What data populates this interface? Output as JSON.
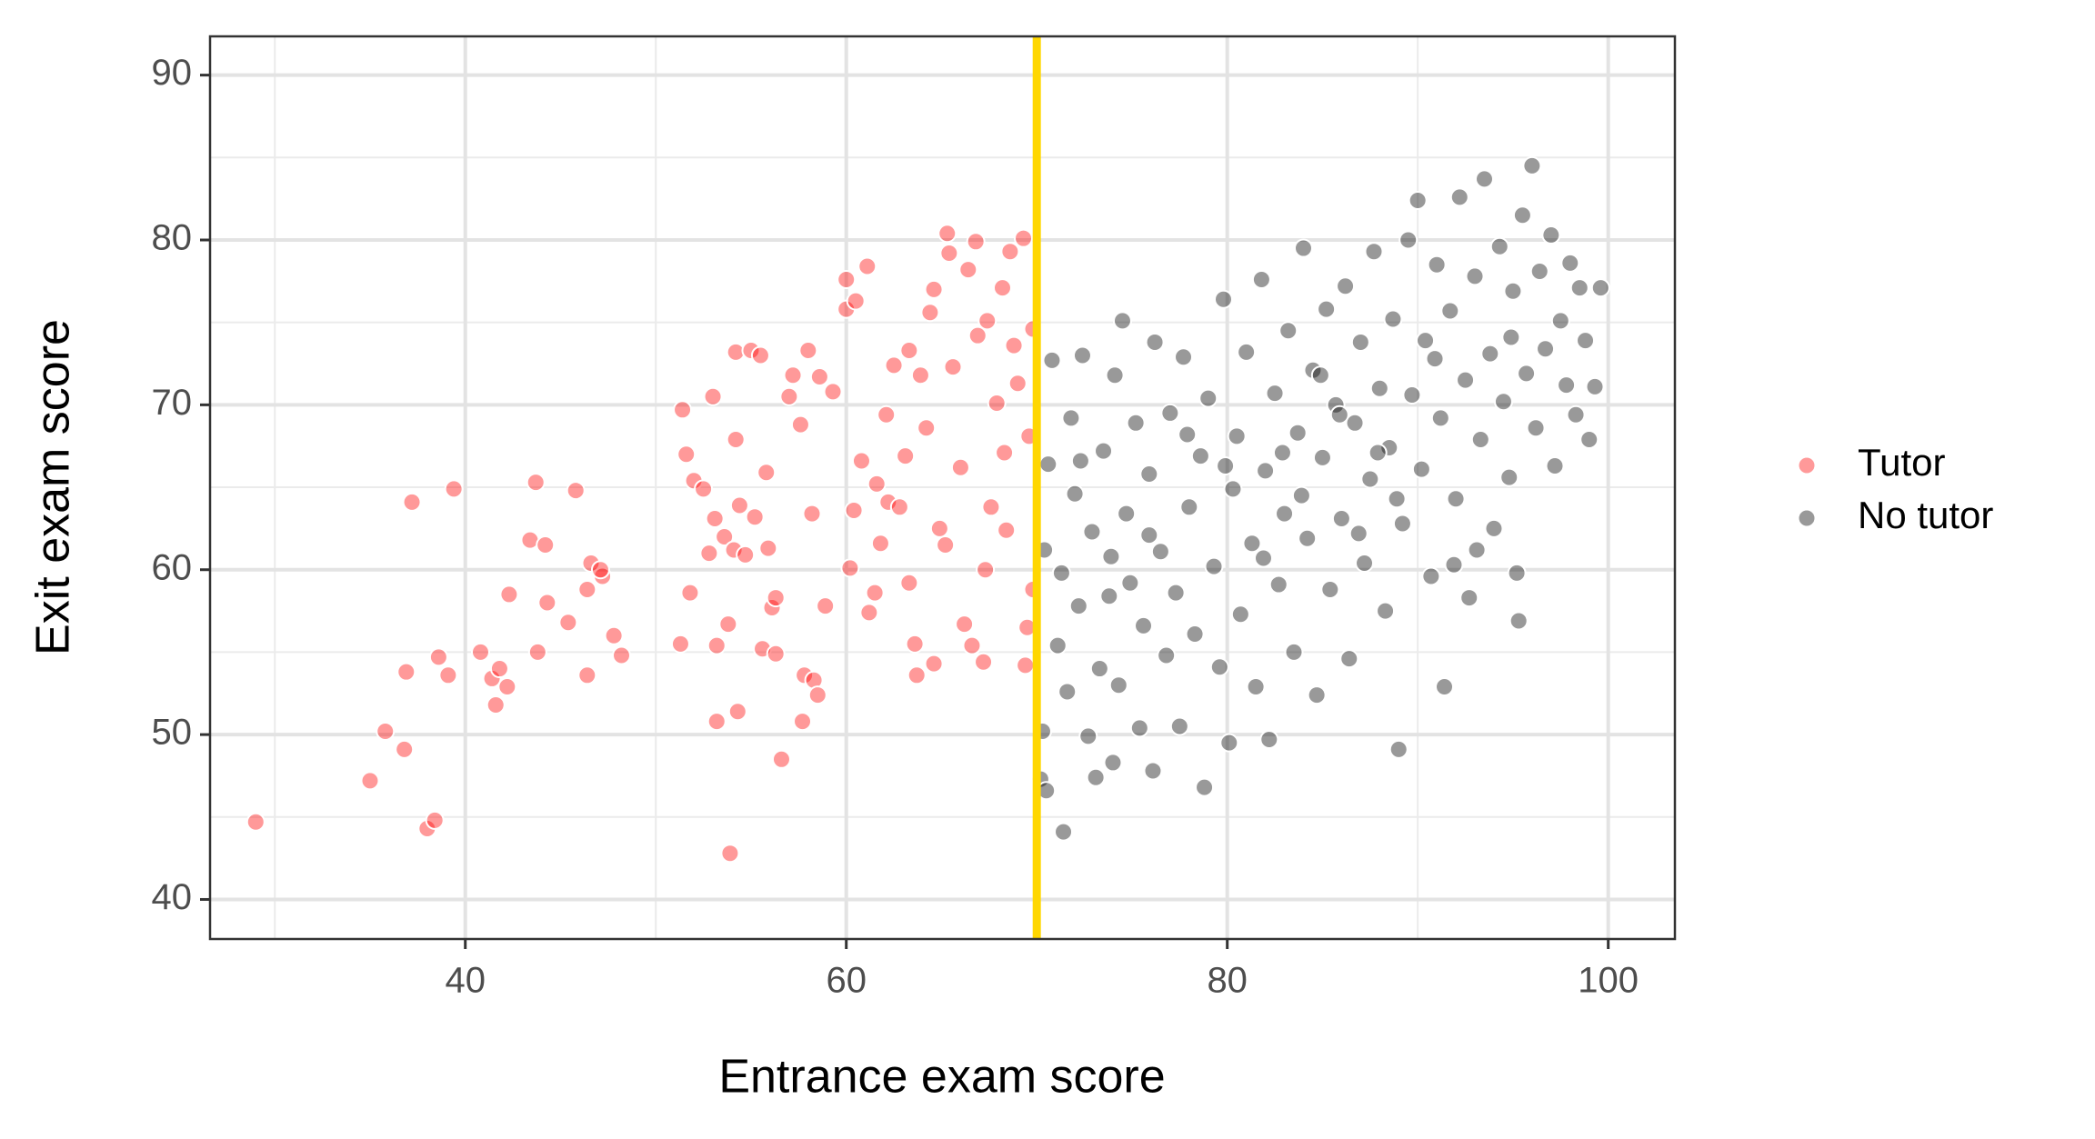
{
  "chart_data": {
    "type": "scatter",
    "x_label": "Entrance exam score",
    "y_label": "Exit exam score",
    "xlim": [
      26.6,
      103.5
    ],
    "ylim": [
      37.6,
      92.35
    ],
    "xticks": [
      40,
      60,
      80,
      100
    ],
    "yticks": [
      40,
      50,
      60,
      70,
      80,
      90
    ],
    "x_minor_ticks": [
      30,
      50,
      70,
      90
    ],
    "y_minor_ticks": [
      45,
      55,
      65,
      75,
      85
    ],
    "grid": true,
    "legend": "right",
    "alpha": 0.4,
    "cutoff": {
      "x": 70,
      "color": "#ffd700"
    },
    "series": [
      {
        "name": "Tutor",
        "color": "#ff0000",
        "x": [
          29,
          35,
          35.8,
          37.2,
          36.9,
          36.8,
          38,
          38.4,
          38.6,
          39.1,
          39.4,
          40.8,
          41.4,
          41.6,
          41.8,
          42.2,
          42.3,
          43.4,
          43.7,
          43.8,
          44.2,
          44.3,
          45.4,
          45.8,
          46.4,
          46.4,
          46.6,
          47.2,
          47.1,
          47.8,
          48.2,
          51.3,
          51.4,
          51.6,
          51.8,
          52,
          52.5,
          52.8,
          53,
          53.1,
          53.2,
          53.2,
          53.6,
          53.8,
          53.9,
          54.1,
          54.2,
          54.2,
          54.3,
          54.4,
          54.7,
          55,
          55.2,
          55.5,
          55.6,
          55.8,
          55.9,
          56.1,
          56.3,
          56.3,
          56.6,
          57,
          57.2,
          57.6,
          57.7,
          57.8,
          58,
          58.2,
          58.3,
          58.5,
          58.6,
          58.9,
          59.3,
          60,
          60,
          60.2,
          60.4,
          60.5,
          60.8,
          61.1,
          61.2,
          61.5,
          61.6,
          61.8,
          62.1,
          62.2,
          62.5,
          62.8,
          63.1,
          63.3,
          63.3,
          63.6,
          63.7,
          63.9,
          64.2,
          64.4,
          64.6,
          64.6,
          64.9,
          65.2,
          65.3,
          65.4,
          65.6,
          66,
          66.2,
          66.4,
          66.6,
          66.8,
          66.9,
          67.2,
          67.3,
          67.4,
          67.6,
          67.9,
          68.2,
          68.3,
          68.6,
          68.8,
          69,
          69.3,
          69.5,
          69.6,
          69.8,
          69.8,
          68.4,
          69.4
        ],
        "values": [
          44.7,
          47.2,
          50.2,
          64.1,
          53.8,
          49.1,
          44.3,
          44.8,
          54.7,
          53.6,
          64.9,
          55,
          53.4,
          51.8,
          54,
          52.9,
          58.5,
          61.8,
          65.3,
          55,
          61.5,
          58,
          56.8,
          64.8,
          53.6,
          58.8,
          60.4,
          59.6,
          60,
          56,
          54.8,
          55.5,
          69.7,
          67,
          58.6,
          65.4,
          64.9,
          61,
          70.5,
          63.1,
          55.4,
          50.8,
          62,
          56.7,
          42.8,
          61.2,
          73.2,
          67.9,
          51.4,
          63.9,
          60.9,
          73.3,
          63.2,
          73,
          55.2,
          65.9,
          61.3,
          57.7,
          54.9,
          58.3,
          48.5,
          70.5,
          71.8,
          68.8,
          50.8,
          53.6,
          73.3,
          63.4,
          53.3,
          52.4,
          71.7,
          57.8,
          70.8,
          75.8,
          77.6,
          60.1,
          63.6,
          76.3,
          66.6,
          78.4,
          57.4,
          58.6,
          65.2,
          61.6,
          69.4,
          64.1,
          72.4,
          63.8,
          66.9,
          59.2,
          73.3,
          55.5,
          53.6,
          71.8,
          68.6,
          75.6,
          54.3,
          77,
          62.5,
          61.5,
          80.4,
          79.2,
          72.3,
          66.2,
          56.7,
          78.2,
          55.4,
          79.9,
          74.2,
          54.4,
          60,
          75.1,
          63.8,
          70.1,
          77.1,
          67.1,
          79.3,
          73.6,
          71.3,
          80.1,
          56.5,
          68.1,
          74.6,
          58.8,
          62.4,
          54.2
        ]
      },
      {
        "name": "No tutor",
        "color": "#000000",
        "x": [
          70.2,
          70.3,
          70.5,
          70.4,
          70.6,
          70.8,
          71.1,
          71.3,
          71.4,
          71.6,
          71.8,
          72,
          72.2,
          72.4,
          72.7,
          72.9,
          73.1,
          73.3,
          73.5,
          73.8,
          74,
          74.1,
          74.3,
          74.5,
          74.7,
          74.9,
          75.2,
          75.4,
          75.6,
          75.9,
          76.1,
          76.2,
          76.5,
          76.8,
          77,
          77.3,
          77.5,
          77.7,
          78,
          78.3,
          78.6,
          78.8,
          79,
          79.3,
          79.6,
          79.8,
          80.1,
          80.3,
          80.5,
          80.7,
          81,
          81.3,
          81.5,
          81.8,
          82,
          82.2,
          82.5,
          82.7,
          83,
          83.2,
          83.5,
          83.7,
          84,
          84.2,
          84.5,
          84.7,
          85,
          85.2,
          85.4,
          85.7,
          86,
          86.2,
          86.4,
          86.7,
          87,
          87.2,
          87.5,
          87.7,
          88,
          88.3,
          88.5,
          88.7,
          89,
          89.2,
          89.5,
          89.7,
          90,
          90.2,
          90.4,
          90.7,
          91,
          91.2,
          91.4,
          91.7,
          92,
          92.2,
          92.5,
          92.7,
          93,
          93.3,
          93.5,
          93.8,
          94,
          94.3,
          94.5,
          94.8,
          95,
          95.3,
          95.5,
          95.7,
          96,
          96.2,
          96.4,
          96.7,
          97,
          97.2,
          97.5,
          97.8,
          98,
          98.3,
          98.5,
          98.8,
          99,
          99.3,
          99.6,
          95.2,
          93.1,
          88.9,
          85.9,
          83.9,
          81.9,
          79.9,
          77.9,
          75.9,
          73.9,
          72.3,
          90.9,
          87.9,
          84.9,
          82.9,
          86.9,
          91.9,
          94.9
        ],
        "values": [
          47.3,
          50.2,
          46.6,
          61.2,
          66.4,
          72.7,
          55.4,
          59.8,
          44.1,
          52.6,
          69.2,
          64.6,
          57.8,
          73,
          49.9,
          62.3,
          47.4,
          54,
          67.2,
          58.4,
          48.3,
          71.8,
          53,
          75.1,
          63.4,
          59.2,
          68.9,
          50.4,
          56.6,
          65.8,
          47.8,
          73.8,
          61.1,
          54.8,
          69.5,
          58.6,
          50.5,
          72.9,
          63.8,
          56.1,
          66.9,
          46.8,
          70.4,
          60.2,
          54.1,
          76.4,
          49.5,
          64.9,
          68.1,
          57.3,
          73.2,
          61.6,
          52.9,
          77.6,
          66,
          49.7,
          70.7,
          59.1,
          63.4,
          74.5,
          55,
          68.3,
          79.5,
          61.9,
          72.1,
          52.4,
          66.8,
          75.8,
          58.8,
          70,
          63.1,
          77.2,
          54.6,
          68.9,
          73.8,
          60.4,
          65.5,
          79.3,
          71,
          57.5,
          67.4,
          75.2,
          49.1,
          62.8,
          80,
          70.6,
          82.4,
          66.1,
          73.9,
          59.6,
          78.5,
          69.2,
          52.9,
          75.7,
          64.3,
          82.6,
          71.5,
          58.3,
          77.8,
          67.9,
          83.7,
          73.1,
          62.5,
          79.6,
          70.2,
          65.6,
          76.9,
          56.9,
          81.5,
          71.9,
          84.5,
          68.6,
          78.1,
          73.4,
          80.3,
          66.3,
          75.1,
          71.2,
          78.6,
          69.4,
          77.1,
          73.9,
          67.9,
          71.1,
          77.1,
          59.8,
          61.2,
          64.3,
          69.4,
          64.5,
          60.7,
          66.3,
          68.2,
          62.1,
          60.8,
          66.6,
          72.8,
          67.1,
          71.8,
          67.1,
          62.2,
          60.3,
          74.1
        ]
      }
    ]
  }
}
